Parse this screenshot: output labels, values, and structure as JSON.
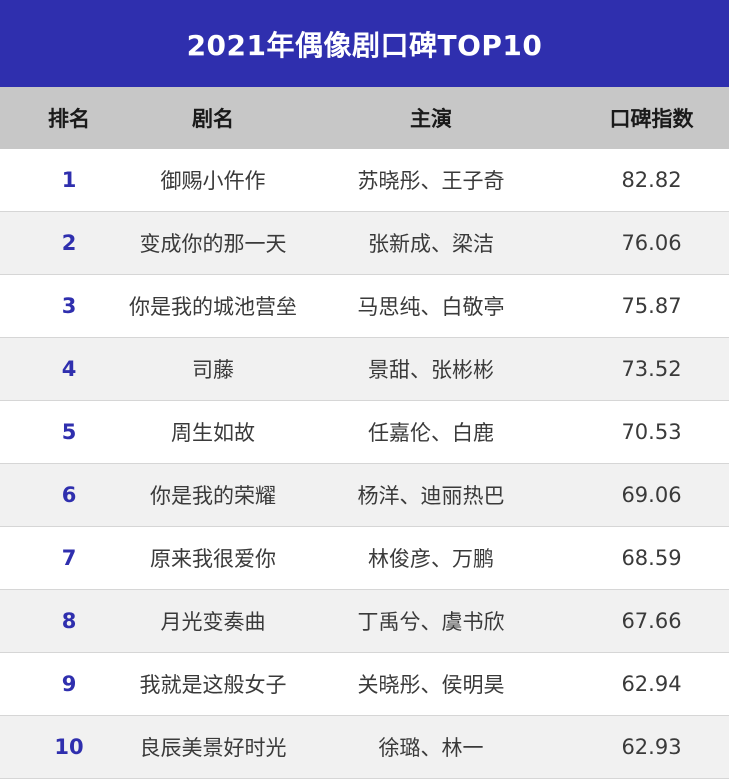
{
  "colors": {
    "title_bg": "#2f2fae",
    "header_bg": "#c7c7c7",
    "row_alt_bg": "#f1f1f1",
    "rank_color": "#2f2fae"
  },
  "chart_data": {
    "type": "table",
    "title": "2021年偶像剧口碑TOP10",
    "columns": [
      "排名",
      "剧名",
      "主演",
      "口碑指数"
    ],
    "rows": [
      {
        "rank": "1",
        "drama": "御赐小仵作",
        "cast": "苏晓彤、王子奇",
        "score": 82.82
      },
      {
        "rank": "2",
        "drama": "变成你的那一天",
        "cast": "张新成、梁洁",
        "score": 76.06
      },
      {
        "rank": "3",
        "drama": "你是我的城池营垒",
        "cast": "马思纯、白敬亭",
        "score": 75.87
      },
      {
        "rank": "4",
        "drama": "司藤",
        "cast": "景甜、张彬彬",
        "score": 73.52
      },
      {
        "rank": "5",
        "drama": "周生如故",
        "cast": "任嘉伦、白鹿",
        "score": 70.53
      },
      {
        "rank": "6",
        "drama": "你是我的荣耀",
        "cast": "杨洋、迪丽热巴",
        "score": 69.06
      },
      {
        "rank": "7",
        "drama": "原来我很爱你",
        "cast": "林俊彦、万鹏",
        "score": 68.59
      },
      {
        "rank": "8",
        "drama": "月光变奏曲",
        "cast": "丁禹兮、虞书欣",
        "score": 67.66
      },
      {
        "rank": "9",
        "drama": "我就是这般女子",
        "cast": "关晓彤、侯明昊",
        "score": 62.94
      },
      {
        "rank": "10",
        "drama": "良辰美景好时光",
        "cast": "徐璐、林一",
        "score": 62.93
      }
    ]
  }
}
